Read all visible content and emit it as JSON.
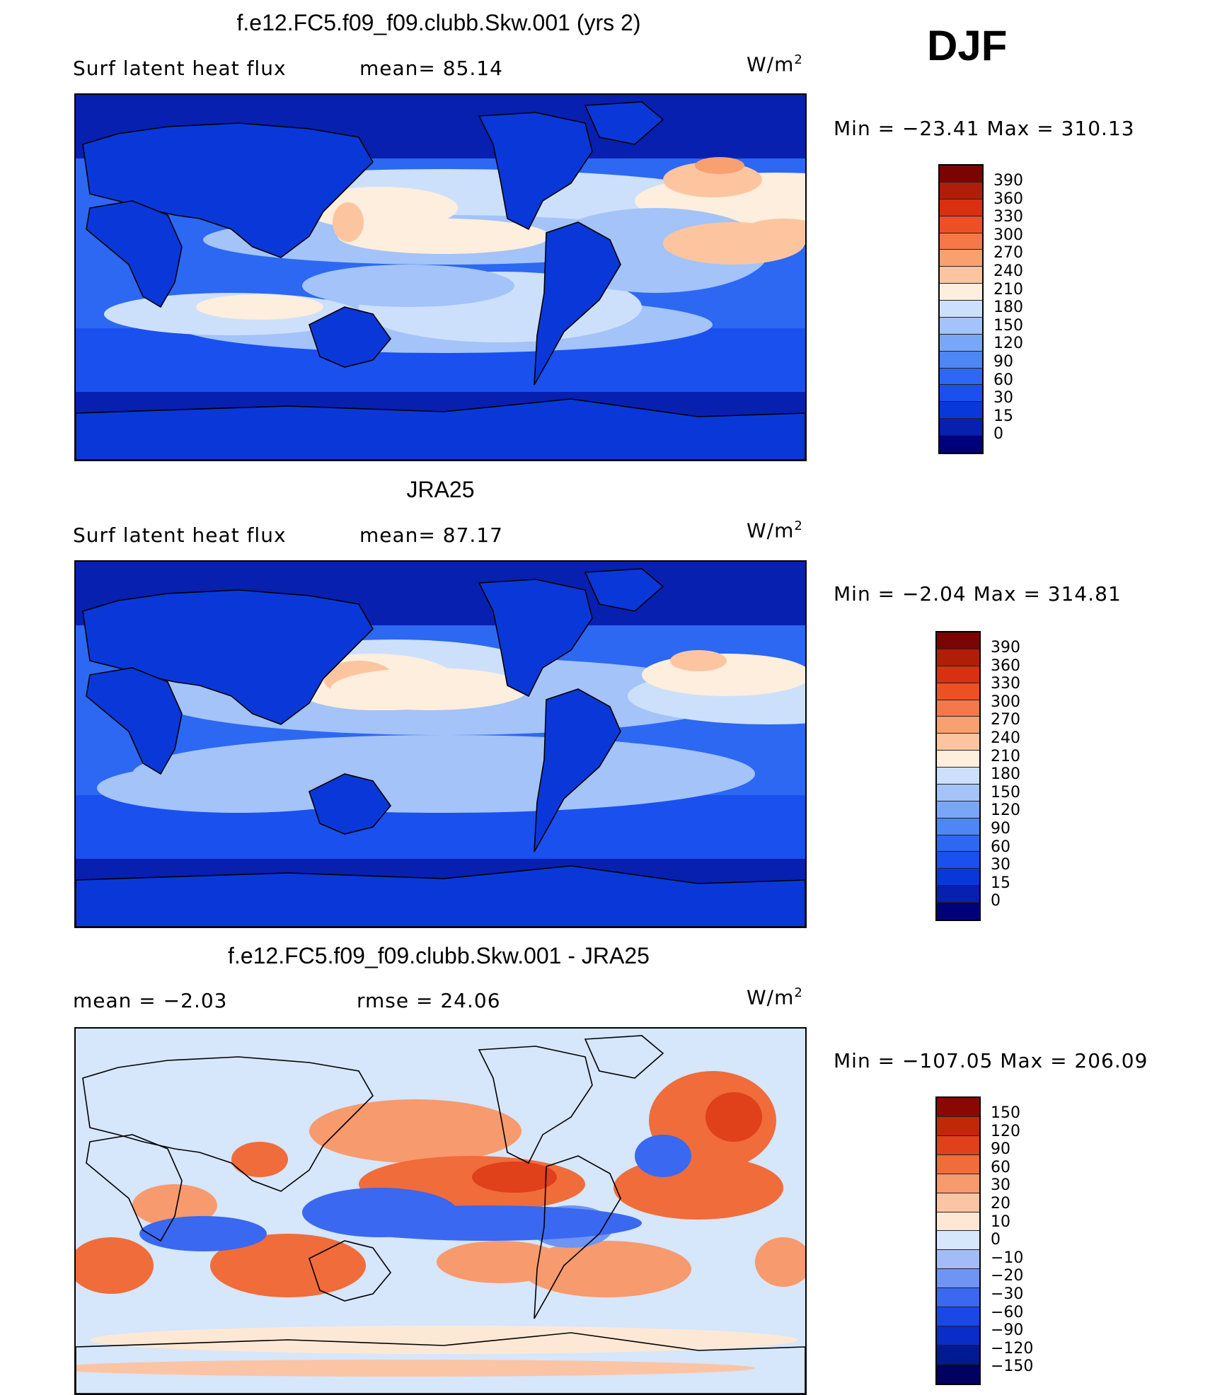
{
  "season": "DJF",
  "units": {
    "base": "W/m",
    "exp": "2"
  },
  "palette_abs": [
    "#00007a",
    "#0720b0",
    "#0a38d8",
    "#1a50ee",
    "#2c68f2",
    "#4d86f5",
    "#7aa6f7",
    "#a3c3f9",
    "#cde0fb",
    "#fdeedd",
    "#fcc5a0",
    "#f9a070",
    "#f5784a",
    "#ee5025",
    "#d83010",
    "#b01e08",
    "#7a0500"
  ],
  "palette_diff": [
    "#000060",
    "#001a90",
    "#0a2cc8",
    "#1a48e8",
    "#3a68f0",
    "#6e94f4",
    "#a2bcf7",
    "#d6e6fb",
    "#fde8d6",
    "#fbc4a4",
    "#f79a6e",
    "#f06c3a",
    "#e0401a",
    "#c02808",
    "#8a0800"
  ],
  "panels": [
    {
      "title": "f.e12.FC5.f09_f09.clubb.Skw.001 (yrs 2)",
      "left_label": "Surf  latent  heat  flux",
      "mid_label": "mean=   85.14",
      "minmax": "Min  =  −23.41  Max  =  310.13",
      "ticks": [
        "390",
        "360",
        "330",
        "300",
        "270",
        "240",
        "210",
        "180",
        "150",
        "120",
        "90",
        "60",
        "30",
        "15",
        "0"
      ]
    },
    {
      "title": "JRA25",
      "left_label": "Surf  latent  heat  flux",
      "mid_label": "mean=   87.17",
      "minmax": "Min  =    −2.04  Max  =  314.81",
      "ticks": [
        "390",
        "360",
        "330",
        "300",
        "270",
        "240",
        "210",
        "180",
        "150",
        "120",
        "90",
        "60",
        "30",
        "15",
        "0"
      ]
    },
    {
      "title": "f.e12.FC5.f09_f09.clubb.Skw.001 - JRA25",
      "left_label": "mean  =    −2.03",
      "mid_label": "rmse  =    24.06",
      "minmax": "Min  =  −107.05  Max  =  206.09",
      "ticks": [
        "150",
        "120",
        "90",
        "60",
        "30",
        "20",
        "10",
        "0",
        "−10",
        "−20",
        "−30",
        "−60",
        "−90",
        "−120",
        "−150"
      ]
    }
  ]
}
